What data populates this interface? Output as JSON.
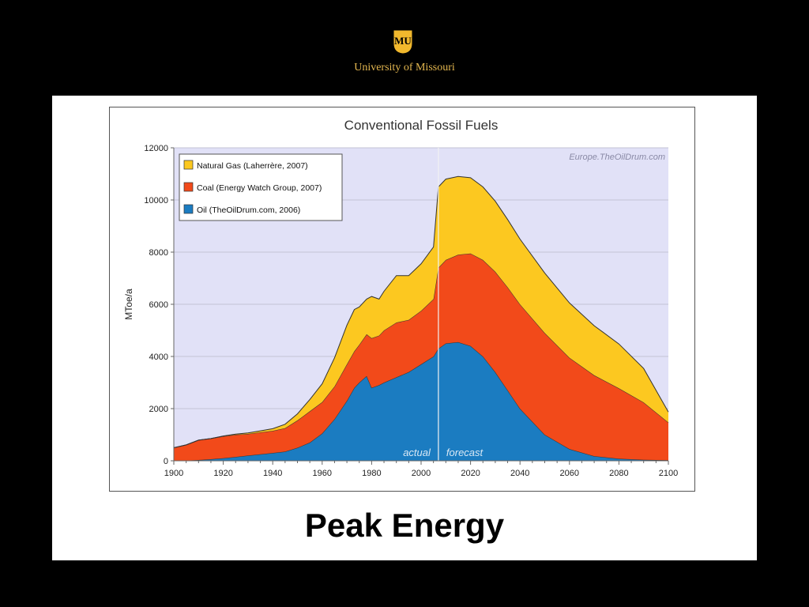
{
  "header": {
    "logo_text": "MU",
    "institution": "University of Missouri"
  },
  "slide": {
    "title": "Peak Energy"
  },
  "chart_data": {
    "type": "area",
    "stacked": true,
    "title": "Conventional Fossil Fuels",
    "watermark": "Europe.TheOilDrum.com",
    "ylabel": "MToe/a",
    "xlabel": "",
    "xlim": [
      1900,
      2100
    ],
    "ylim": [
      0,
      12000
    ],
    "x_ticks": [
      1900,
      1920,
      1940,
      1960,
      1980,
      2000,
      2020,
      2040,
      2060,
      2080,
      2100
    ],
    "y_ticks": [
      0,
      2000,
      4000,
      6000,
      8000,
      10000,
      12000
    ],
    "grid": true,
    "legend_position": "top-left",
    "divider": {
      "x": 2007,
      "left_label": "actual",
      "right_label": "forecast"
    },
    "x": [
      1900,
      1905,
      1910,
      1915,
      1920,
      1925,
      1930,
      1935,
      1940,
      1945,
      1950,
      1955,
      1960,
      1965,
      1970,
      1973,
      1975,
      1978,
      1980,
      1983,
      1985,
      1990,
      1995,
      2000,
      2005,
      2007,
      2010,
      2015,
      2020,
      2025,
      2030,
      2035,
      2040,
      2050,
      2060,
      2070,
      2080,
      2090,
      2100
    ],
    "series": [
      {
        "name": "Oil  (TheOilDrum.com, 2006)",
        "color": "#1b7cc1",
        "values": [
          0,
          10,
          30,
          60,
          100,
          150,
          200,
          250,
          300,
          350,
          500,
          700,
          1050,
          1600,
          2300,
          2800,
          3000,
          3250,
          2800,
          2900,
          3000,
          3200,
          3400,
          3700,
          4000,
          4300,
          4500,
          4550,
          4400,
          4000,
          3400,
          2700,
          2000,
          1000,
          450,
          180,
          80,
          40,
          20
        ]
      },
      {
        "name": "Coal  (Energy Watch Group, 2007)",
        "color": "#f24a1a",
        "values": [
          500,
          600,
          760,
          790,
          840,
          850,
          830,
          840,
          850,
          900,
          1050,
          1200,
          1200,
          1250,
          1400,
          1400,
          1450,
          1600,
          1900,
          1900,
          2000,
          2100,
          2000,
          2050,
          2200,
          3100,
          3200,
          3350,
          3550,
          3700,
          3850,
          3950,
          4000,
          3900,
          3500,
          3100,
          2700,
          2200,
          1450
        ]
      },
      {
        "name": "Natural Gas  (Laherrère, 2007)",
        "color": "#fcc820",
        "values": [
          0,
          0,
          0,
          0,
          10,
          20,
          40,
          60,
          80,
          150,
          250,
          450,
          700,
          1100,
          1500,
          1600,
          1450,
          1350,
          1600,
          1400,
          1500,
          1800,
          1700,
          1800,
          2000,
          3100,
          3100,
          3000,
          2900,
          2800,
          2700,
          2600,
          2500,
          2300,
          2100,
          1900,
          1700,
          1300,
          400
        ]
      }
    ]
  }
}
